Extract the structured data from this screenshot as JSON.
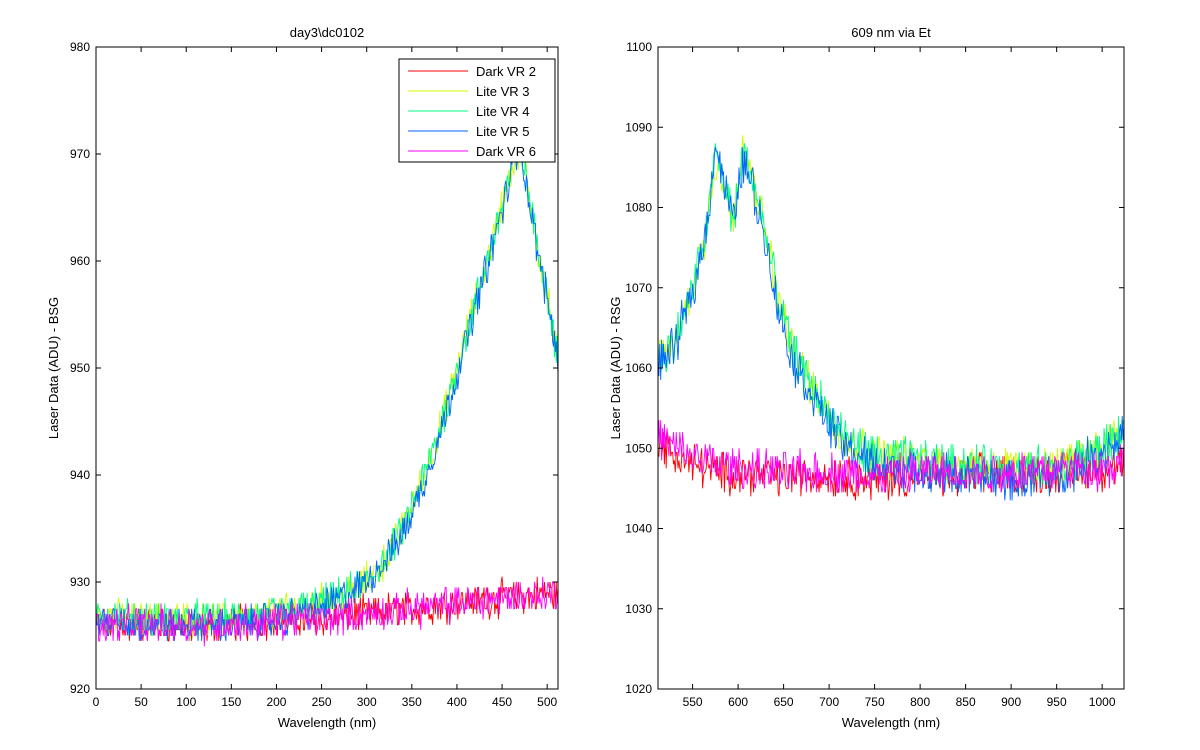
{
  "chart_data": [
    {
      "type": "line",
      "title": "day3\\dc0102",
      "xlabel": "Wavelength (nm)",
      "ylabel": "Laser Data (ADU) - BSG",
      "xlim": [
        0,
        512
      ],
      "ylim": [
        920,
        980
      ],
      "xticks": [
        0,
        50,
        100,
        150,
        200,
        250,
        300,
        350,
        400,
        450,
        500
      ],
      "yticks": [
        920,
        930,
        940,
        950,
        960,
        970,
        980
      ],
      "grid": false,
      "legend_position": "top-right",
      "noise_amplitude": 1.4,
      "series": [
        {
          "name": "Dark VR 2",
          "color": "#ff0000",
          "x": [
            0,
            50,
            100,
            150,
            200,
            250,
            300,
            350,
            400,
            450,
            512
          ],
          "y": [
            926,
            926,
            926,
            926,
            926.5,
            926.5,
            927,
            927.5,
            928,
            928.5,
            929
          ]
        },
        {
          "name": "Lite VR 3",
          "color": "#ccff00",
          "x": [
            0,
            50,
            100,
            150,
            200,
            250,
            280,
            300,
            320,
            340,
            360,
            380,
            400,
            420,
            440,
            455,
            470,
            480,
            490,
            500,
            512
          ],
          "y": [
            927,
            926.5,
            926.5,
            926.5,
            927,
            928,
            929,
            930,
            932,
            935,
            939,
            944,
            950,
            956,
            962,
            967,
            971,
            966,
            961,
            957,
            951
          ]
        },
        {
          "name": "Lite VR 4",
          "color": "#00ff80",
          "x": [
            0,
            50,
            100,
            150,
            200,
            250,
            280,
            300,
            320,
            340,
            360,
            380,
            400,
            420,
            440,
            455,
            470,
            480,
            490,
            500,
            512
          ],
          "y": [
            927,
            926.5,
            926.5,
            926.5,
            927,
            928,
            929,
            930,
            932,
            935,
            939,
            944,
            950,
            956,
            962,
            967,
            971,
            966,
            961,
            957,
            951
          ]
        },
        {
          "name": "Lite VR 5",
          "color": "#0066ff",
          "x": [
            0,
            50,
            100,
            150,
            200,
            250,
            280,
            300,
            320,
            340,
            360,
            380,
            400,
            420,
            440,
            455,
            470,
            480,
            490,
            500,
            512
          ],
          "y": [
            926.5,
            926,
            926,
            926,
            926.5,
            927.5,
            929,
            930,
            932,
            934.5,
            938.5,
            943.5,
            949.5,
            955.5,
            961.5,
            966.5,
            971,
            965.5,
            960.5,
            956.5,
            951
          ]
        },
        {
          "name": "Dark VR 6",
          "color": "#ff00ff",
          "x": [
            0,
            50,
            100,
            150,
            200,
            250,
            300,
            350,
            400,
            450,
            512
          ],
          "y": [
            926,
            926,
            926,
            926,
            926.5,
            926.5,
            927,
            927.5,
            928,
            928.5,
            929
          ]
        }
      ]
    },
    {
      "type": "line",
      "title": "609 nm via Et",
      "xlabel": "Wavelength (nm)",
      "ylabel": "Laser Data (ADU) - RSG",
      "xlim": [
        512,
        1024
      ],
      "ylim": [
        1020,
        1100
      ],
      "xticks": [
        550,
        600,
        650,
        700,
        750,
        800,
        850,
        900,
        950,
        1000
      ],
      "yticks": [
        1020,
        1030,
        1040,
        1050,
        1060,
        1070,
        1080,
        1090,
        1100
      ],
      "grid": false,
      "noise_amplitude": 2.2,
      "series": [
        {
          "name": "Dark VR 2",
          "color": "#ff0000",
          "x": [
            512,
            530,
            550,
            580,
            600,
            650,
            700,
            750,
            800,
            850,
            900,
            950,
            1000,
            1024
          ],
          "y": [
            1051,
            1049,
            1048,
            1047,
            1047,
            1046.5,
            1046.5,
            1046,
            1046.5,
            1046.5,
            1047,
            1047,
            1047.5,
            1048
          ]
        },
        {
          "name": "Lite VR 3",
          "color": "#ccff00",
          "x": [
            512,
            530,
            550,
            565,
            575,
            585,
            595,
            605,
            615,
            630,
            645,
            660,
            680,
            700,
            720,
            750,
            800,
            850,
            900,
            950,
            1000,
            1024
          ],
          "y": [
            1061,
            1063,
            1070,
            1077,
            1086,
            1083,
            1078,
            1087,
            1084,
            1077,
            1068,
            1062,
            1058,
            1054,
            1051,
            1049,
            1048.5,
            1048,
            1047.5,
            1047.5,
            1050,
            1052.5
          ]
        },
        {
          "name": "Lite VR 4",
          "color": "#00ff80",
          "x": [
            512,
            530,
            550,
            565,
            575,
            585,
            595,
            605,
            615,
            630,
            645,
            660,
            680,
            700,
            720,
            750,
            800,
            850,
            900,
            950,
            1000,
            1024
          ],
          "y": [
            1061,
            1063,
            1070,
            1077,
            1087,
            1083,
            1078,
            1087,
            1084,
            1077,
            1068,
            1062,
            1058,
            1054,
            1051,
            1049,
            1048.5,
            1048,
            1047.5,
            1047.5,
            1050,
            1052.5
          ]
        },
        {
          "name": "Lite VR 5",
          "color": "#0066ff",
          "x": [
            512,
            530,
            550,
            565,
            575,
            585,
            595,
            605,
            615,
            630,
            645,
            660,
            680,
            700,
            720,
            750,
            800,
            850,
            900,
            950,
            1000,
            1024
          ],
          "y": [
            1060.5,
            1062.5,
            1069.5,
            1077,
            1088,
            1083,
            1078,
            1086,
            1083,
            1076,
            1067,
            1061,
            1057,
            1053,
            1050,
            1048,
            1047,
            1046.5,
            1046,
            1046.5,
            1049.5,
            1052
          ]
        },
        {
          "name": "Dark VR 6",
          "color": "#ff00ff",
          "x": [
            512,
            530,
            550,
            580,
            600,
            650,
            700,
            750,
            800,
            850,
            900,
            950,
            1000,
            1024
          ],
          "y": [
            1051.5,
            1050,
            1049,
            1048,
            1047.5,
            1047,
            1047,
            1046.5,
            1047,
            1047,
            1047,
            1047.5,
            1047.5,
            1048
          ]
        }
      ]
    }
  ]
}
